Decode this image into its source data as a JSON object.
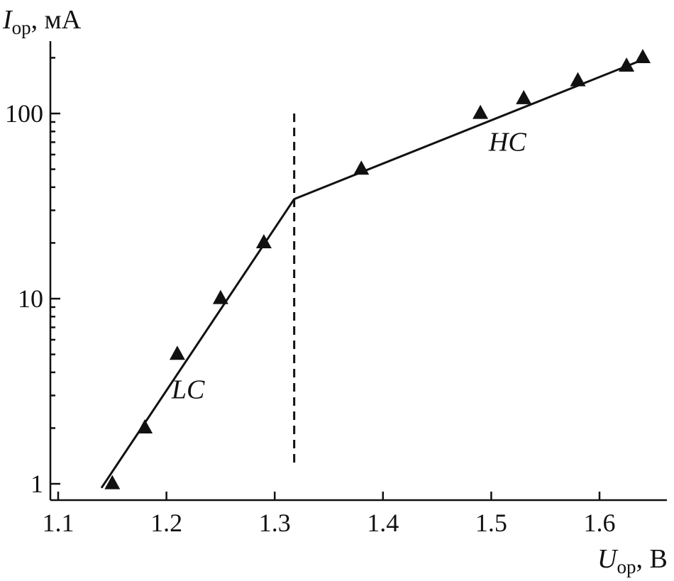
{
  "chart_data": {
    "type": "scatter",
    "xlabel": {
      "symbol": "U",
      "subscript": "ор",
      "unit": ", В"
    },
    "ylabel": {
      "symbol": "I",
      "subscript": "ор",
      "unit": ", мА"
    },
    "xlim": [
      1.1,
      1.65
    ],
    "ylim": [
      0.8,
      230
    ],
    "y_scale": "log",
    "x_ticks": [
      {
        "value": 1.1,
        "label": "1.1"
      },
      {
        "value": 1.2,
        "label": "1.2"
      },
      {
        "value": 1.3,
        "label": "1.3"
      },
      {
        "value": 1.4,
        "label": "1.4"
      },
      {
        "value": 1.5,
        "label": "1.5"
      },
      {
        "value": 1.6,
        "label": "1.6"
      }
    ],
    "y_ticks": [
      {
        "value": 1,
        "label": "1"
      },
      {
        "value": 10,
        "label": "10"
      },
      {
        "value": 100,
        "label": "100"
      }
    ],
    "y_minor_ticks": [
      2,
      3,
      4,
      5,
      6,
      7,
      8,
      9,
      20,
      30,
      40,
      50,
      60,
      70,
      80,
      90,
      200
    ],
    "series": [
      {
        "marker": "triangle",
        "x": [
          1.15,
          1.18,
          1.21,
          1.25,
          1.29,
          1.38,
          1.49,
          1.53,
          1.58,
          1.625,
          1.64
        ],
        "y": [
          1.0,
          2.0,
          5.0,
          10.0,
          20.0,
          50.0,
          100.0,
          120.0,
          150.0,
          180.0,
          200.0
        ]
      }
    ],
    "fit_lines": [
      {
        "label": "LC",
        "points": [
          [
            1.14,
            0.95
          ],
          [
            1.318,
            34.5
          ]
        ]
      },
      {
        "label": "HC",
        "points": [
          [
            1.318,
            34.5
          ],
          [
            1.635,
            190.0
          ]
        ]
      }
    ],
    "annotations": [
      {
        "text": "LC",
        "x": 1.22,
        "y": 2.9
      },
      {
        "text": "HC",
        "x": 1.515,
        "y": 63.0
      }
    ],
    "vertical_line": {
      "x": 1.318,
      "y_from": 1.25,
      "y_to": 100,
      "style": "dashed"
    },
    "grid": false,
    "legend": "none"
  }
}
